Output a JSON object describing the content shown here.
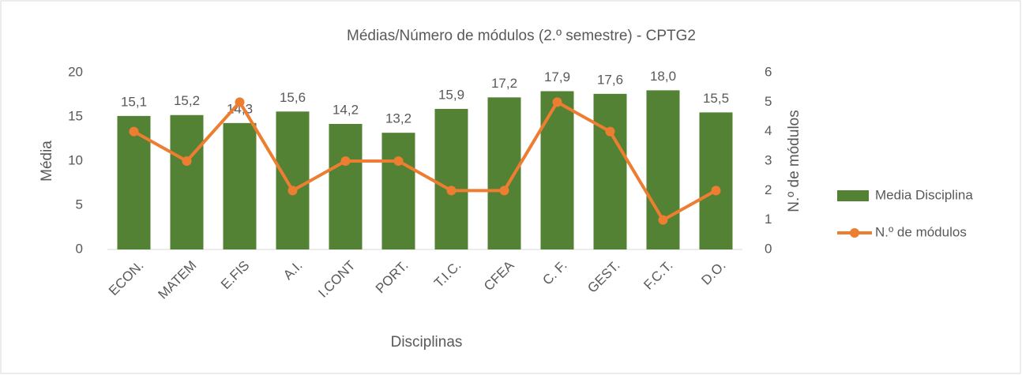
{
  "chart_data": {
    "type": "bar-line",
    "title": "Médias/Número de módulos (2.º semestre) - CPTG2",
    "x_label": "Disciplinas",
    "y_label": "Média",
    "y2_label": "N.º de módulos",
    "categories": [
      "ECON.",
      "MATEM",
      "E.FIS",
      "A.I.",
      "I.CONT",
      "PORT.",
      "T.I.C.",
      "CFEA",
      "C. F.",
      "GEST.",
      "F.C.T.",
      "D.O."
    ],
    "series": [
      {
        "name": "Media Disciplina",
        "type": "bar",
        "color": "#548235",
        "values": [
          15.1,
          15.2,
          14.3,
          15.6,
          14.2,
          13.2,
          15.9,
          17.2,
          17.9,
          17.6,
          18.0,
          15.5
        ],
        "value_labels": [
          "15,1",
          "15,2",
          "14,3",
          "15,6",
          "14,2",
          "13,2",
          "15,9",
          "17,2",
          "17,9",
          "17,6",
          "18,0",
          "15,5"
        ]
      },
      {
        "name": "N.º de módulos",
        "type": "line",
        "axis": "y2",
        "color": "#ed7d31",
        "values": [
          4,
          3,
          5,
          2,
          3,
          3,
          2,
          2,
          5,
          4,
          1,
          2
        ]
      }
    ],
    "ylim": [
      0,
      20
    ],
    "yticks": [
      0,
      5,
      10,
      15,
      20
    ],
    "y2lim": [
      0,
      6
    ],
    "y2ticks": [
      0,
      1,
      2,
      3,
      4,
      5,
      6
    ],
    "legend": "right"
  }
}
